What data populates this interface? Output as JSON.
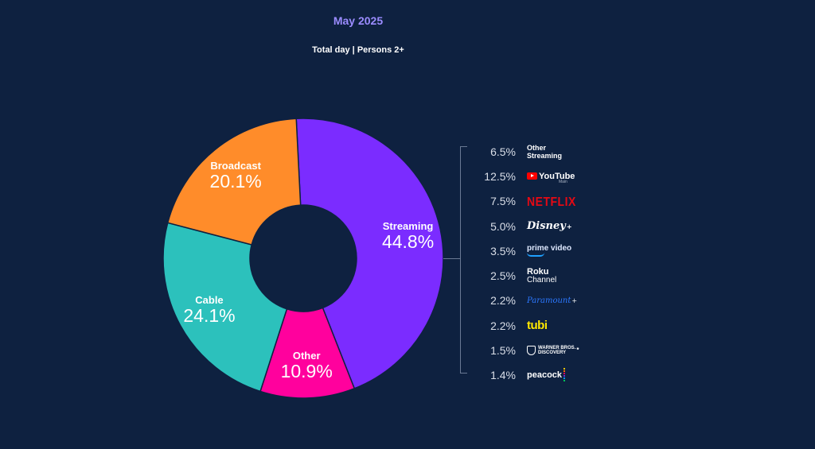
{
  "header": {
    "title": "May 2025",
    "subtitle": "Total day | Persons 2+"
  },
  "chart_data": {
    "type": "pie",
    "title": "May 2025",
    "subtitle": "Total day | Persons 2+",
    "donut": true,
    "slices": [
      {
        "name": "Streaming",
        "value": 44.8,
        "label": "44.8%",
        "color": "#7b2cff"
      },
      {
        "name": "Other",
        "value": 10.9,
        "label": "10.9%",
        "color": "#ff019d"
      },
      {
        "name": "Cable",
        "value": 24.1,
        "label": "24.1%",
        "color": "#2cc1bc"
      },
      {
        "name": "Broadcast",
        "value": 20.1,
        "label": "20.1%",
        "color": "#ff8c2a"
      }
    ],
    "streaming_breakdown": [
      {
        "name": "Other Streaming",
        "value": 6.5,
        "label": "6.5%"
      },
      {
        "name": "YouTube",
        "value": 12.5,
        "label": "12.5%"
      },
      {
        "name": "NETFLIX",
        "value": 7.5,
        "label": "7.5%"
      },
      {
        "name": "Disney",
        "value": 5.0,
        "label": "5.0%"
      },
      {
        "name": "prime video",
        "value": 3.5,
        "label": "3.5%"
      },
      {
        "name": "Roku Channel",
        "value": 2.5,
        "label": "2.5%"
      },
      {
        "name": "Paramount",
        "value": 2.2,
        "label": "2.2%"
      },
      {
        "name": "tubi",
        "value": 2.2,
        "label": "2.2%"
      },
      {
        "name": "Warner Bros. Discovery",
        "value": 1.5,
        "label": "1.5%"
      },
      {
        "name": "peacock",
        "value": 1.4,
        "label": "1.4%"
      }
    ]
  },
  "logos": {
    "other_streaming_1": "Other",
    "other_streaming_2": "Streaming",
    "youtube": "YouTube",
    "youtube_sub": "Main",
    "netflix": "NETFLIX",
    "disney": "Disney",
    "disney_mark": "+",
    "prime": "prime video",
    "roku_1": "Roku",
    "roku_2": "Channel",
    "paramount": "Paramount",
    "paramount_mark": "+",
    "tubi": "tubi",
    "wbd_1": "WARNER BROS.",
    "wbd_2": "DISCOVERY",
    "wbd_mark": "*",
    "peacock": "peacock"
  },
  "colors": {
    "background": "#0e2140",
    "title": "#9b8cff",
    "peacock_dots": [
      "#ffc400",
      "#ff6a00",
      "#e5005a",
      "#6e2bd9",
      "#0096ff",
      "#00c25a"
    ]
  }
}
